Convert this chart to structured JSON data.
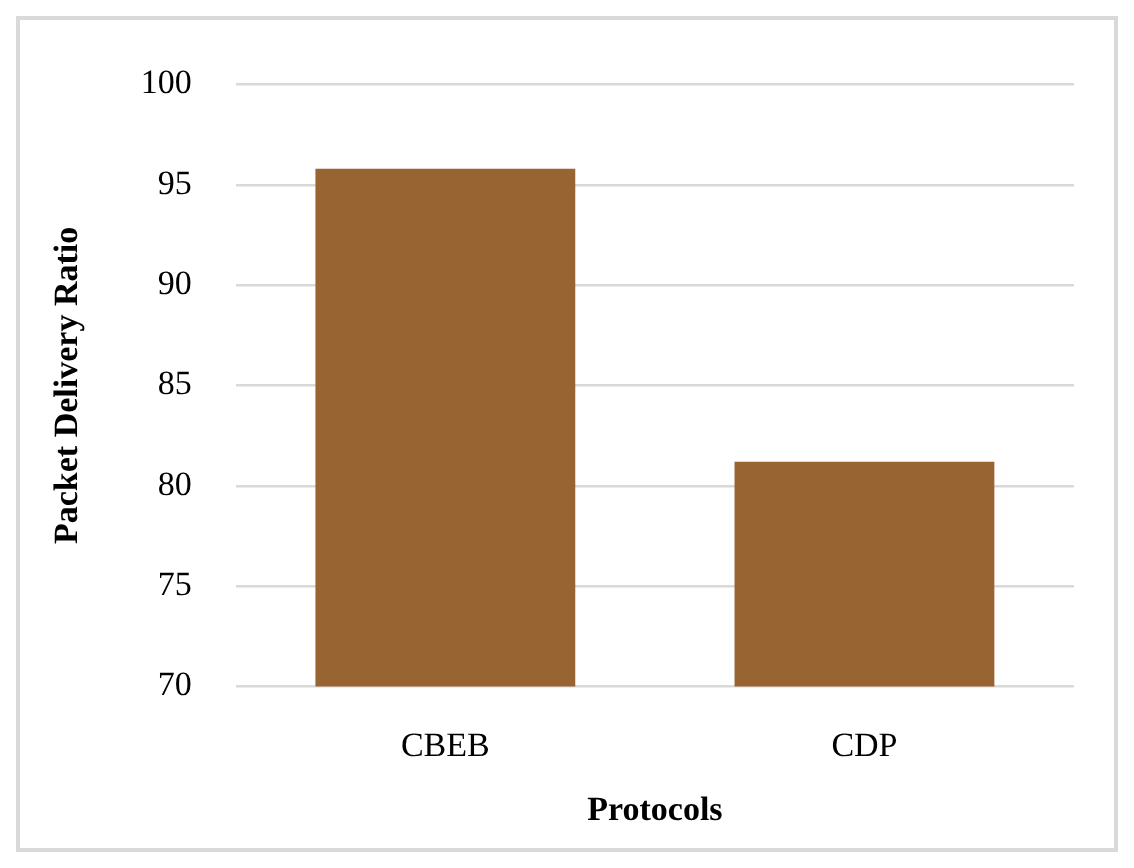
{
  "chart_data": {
    "type": "bar",
    "xlabel": "Protocols",
    "ylabel": "Packet Delivery Ratio",
    "categories": [
      "CBEB",
      "CDP"
    ],
    "values": [
      95.8,
      81.2
    ],
    "color": "#976432",
    "ylim": [
      70,
      100
    ],
    "yticks": [
      70,
      75,
      80,
      85,
      90,
      95,
      100
    ],
    "grid": "y",
    "legend": false
  }
}
